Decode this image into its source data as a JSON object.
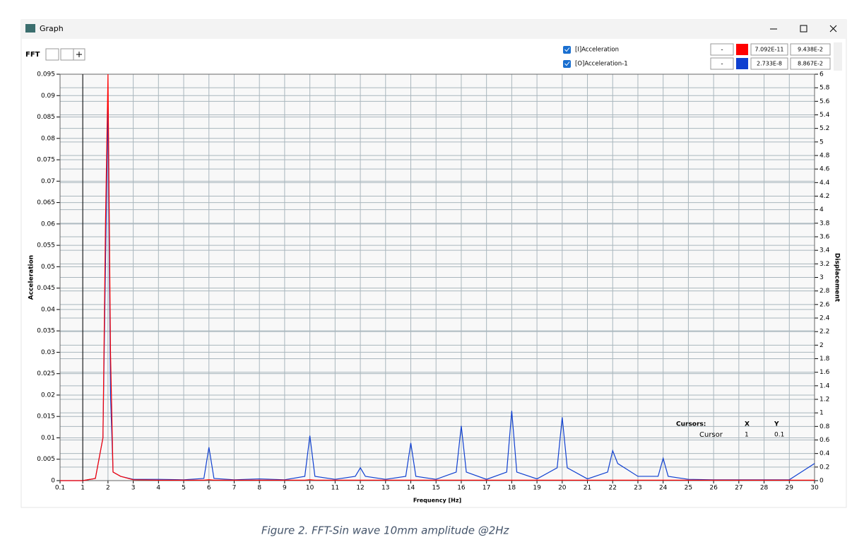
{
  "window": {
    "title": "Graph"
  },
  "toolbar": {
    "label": "FFT"
  },
  "legend_rows": [
    [
      "-",
      "7.092E-11",
      "9.438E-2"
    ],
    [
      "-",
      "2.733E-8",
      "8.867E-2"
    ]
  ],
  "cursor_panel": {
    "headers": [
      "Cursors:",
      "X",
      "Y"
    ],
    "name": "Cursor",
    "x": 1,
    "y": 0.1,
    "x_label": "1",
    "y_label": "0.1"
  },
  "caption": "Figure 2. FFT-Sin wave 10mm amplitude @2Hz",
  "chart_data": {
    "type": "line",
    "x_label": "Frequency [Hz]",
    "y_label": "Acceleration",
    "y2_label": "Displacement",
    "xlim": [
      0.1,
      30
    ],
    "xticks": [
      0.1,
      1,
      2,
      3,
      4,
      5,
      6,
      7,
      8,
      9,
      10,
      11,
      12,
      13,
      14,
      15,
      16,
      17,
      18,
      19,
      20,
      21,
      22,
      23,
      24,
      25,
      26,
      27,
      28,
      29,
      30
    ],
    "ylim": [
      0,
      0.095
    ],
    "yticks": [
      0,
      0.005,
      0.01,
      0.015,
      0.02,
      0.025,
      0.03,
      0.035,
      0.04,
      0.045,
      0.05,
      0.055,
      0.06,
      0.065,
      0.07,
      0.075,
      0.08,
      0.085,
      0.09,
      0.095
    ],
    "y2lim": [
      0,
      6
    ],
    "y2ticks": [
      0,
      0.2,
      0.4,
      0.6,
      0.8,
      1,
      1.2,
      1.4,
      1.6,
      1.8,
      2,
      2.2,
      2.4,
      2.6,
      2.8,
      3,
      3.2,
      3.4,
      3.6,
      3.8,
      4,
      4.2,
      4.4,
      4.6,
      4.8,
      5,
      5.2,
      5.4,
      5.6,
      5.8,
      6
    ],
    "grid": true,
    "x": [
      0.1,
      0.5,
      1,
      1.5,
      1.8,
      1.9,
      2,
      2.1,
      2.2,
      2.5,
      3,
      4,
      5,
      5.8,
      6,
      6.2,
      7,
      8,
      9,
      9.8,
      10,
      10.2,
      11,
      11.8,
      12,
      12.2,
      13,
      13.8,
      14,
      14.2,
      15,
      15.8,
      16,
      16.2,
      17,
      17.8,
      18,
      18.2,
      19,
      19.8,
      20,
      20.2,
      21,
      21.8,
      22,
      22.2,
      23,
      23.8,
      24,
      24.2,
      25,
      26,
      27,
      28,
      29,
      30
    ],
    "series": [
      {
        "name": "[I]Acceleration",
        "color": "#ff0000",
        "values": [
          0,
          0,
          0,
          0.0005,
          0.01,
          0.06,
          0.095,
          0.03,
          0.002,
          0.001,
          0.0002,
          0.0001,
          0.0001,
          0.0001,
          0.0002,
          0.0001,
          0.0001,
          0.0001,
          0.0001,
          0.0001,
          0.0002,
          0.0001,
          0.0001,
          0.0001,
          0.0001,
          0.0001,
          0.0001,
          0.0001,
          0.0001,
          0.0001,
          0.0001,
          0.0001,
          0.0001,
          0.0001,
          0.0001,
          0.0001,
          0.0001,
          0.0001,
          0.0001,
          0.0001,
          0.0001,
          0.0001,
          0.0001,
          0.0001,
          0.0001,
          0.0001,
          0.0001,
          0.0001,
          0.0001,
          0.0001,
          0.0001,
          0.0001,
          0.0001,
          0.0001,
          0.0001,
          0.0001
        ]
      },
      {
        "name": "[O]Acceleration-1",
        "color": "#1040d0",
        "values": [
          0,
          0,
          0,
          0.0005,
          0.01,
          0.05,
          0.088,
          0.02,
          0.002,
          0.001,
          0.0003,
          0.0003,
          0.0002,
          0.0005,
          0.0078,
          0.0005,
          0.0002,
          0.0004,
          0.0002,
          0.001,
          0.0105,
          0.001,
          0.0003,
          0.001,
          0.003,
          0.001,
          0.0003,
          0.001,
          0.0088,
          0.001,
          0.0003,
          0.002,
          0.0128,
          0.002,
          0.0003,
          0.002,
          0.0163,
          0.002,
          0.0004,
          0.003,
          0.0148,
          0.003,
          0.0004,
          0.002,
          0.007,
          0.004,
          0.001,
          0.001,
          0.0052,
          0.001,
          0.0003,
          0.0002,
          0.0002,
          0.0002,
          0.0002,
          0.004
        ]
      }
    ]
  }
}
